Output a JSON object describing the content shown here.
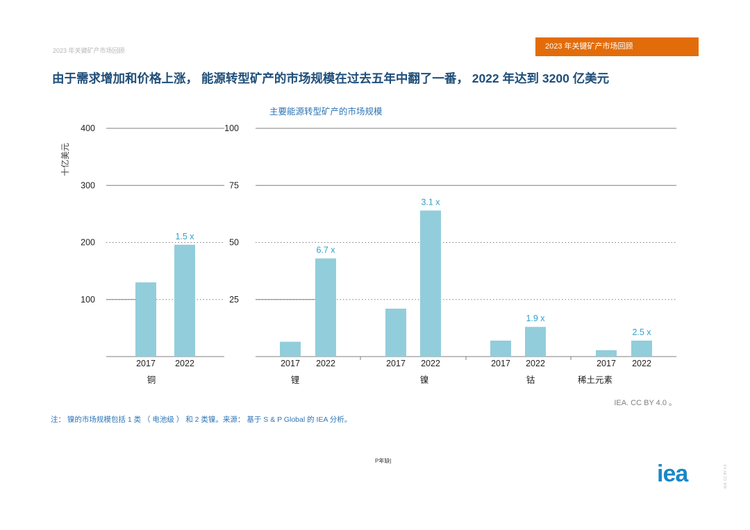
{
  "header": {
    "small_title": "2023 年关键矿产市场回顾",
    "tag_title": "2023 年关键矿产市场回顾"
  },
  "headline": "由于需求增加和价格上涨， 能源转型矿产的市场规模在过去五年中翻了一番， 2022 年达到 3200 亿美元",
  "chart_data": {
    "type": "bar",
    "title": "主要能源转型矿产的市场规模",
    "ylabel": "十亿美元",
    "panels": [
      {
        "name": "铜",
        "ylim": [
          0,
          400
        ],
        "yticks": [
          "400",
          "300",
          "200",
          "100"
        ],
        "categories": [
          "2017",
          "2022"
        ],
        "values": [
          130,
          196
        ],
        "growth_label": "1.5 x"
      },
      {
        "name": "锂",
        "ylim": [
          0,
          100
        ],
        "yticks": [
          "100",
          "75",
          "50",
          "25"
        ],
        "categories": [
          "2017",
          "2022"
        ],
        "values": [
          6.5,
          43
        ],
        "growth_label": "6.7 x"
      },
      {
        "name": "镍",
        "ylim": [
          0,
          100
        ],
        "categories": [
          "2017",
          "2022"
        ],
        "values": [
          21,
          64
        ],
        "growth_label": "3.1 x"
      },
      {
        "name": "钴",
        "ylim": [
          0,
          100
        ],
        "categories": [
          "2017",
          "2022"
        ],
        "values": [
          7,
          13
        ],
        "growth_label": "1.9 x"
      },
      {
        "name": "稀土元素",
        "ylim": [
          0,
          100
        ],
        "categories": [
          "2017",
          "2022"
        ],
        "values": [
          2.8,
          7
        ],
        "growth_label": "2.5 x"
      }
    ],
    "colors": {
      "bar": "#92cddc",
      "growth_label": "#31a0c8",
      "grid": "#7f7f7f"
    }
  },
  "source": "IEA. CC BY 4.0 。",
  "note": "注： 镍的市场规模包括 1 类 （ 电池级 ） 和 2 类镍。来源： 基于 S & P Global 的 IEA 分析。",
  "page_number": "P年缺|",
  "logo_text": "iea",
  "side_tiny": "IEA. CC BY 4.0"
}
